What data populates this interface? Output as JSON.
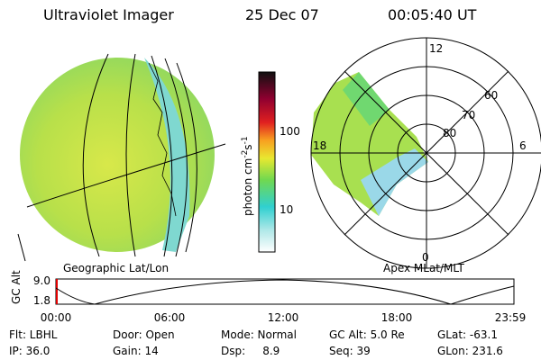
{
  "header": {
    "instrument": "Ultraviolet Imager",
    "date": "25 Dec 07",
    "time": "00:05:40 UT"
  },
  "colorbar": {
    "unit": [
      "photon cm",
      "-2",
      "s",
      "-1"
    ],
    "ticks": [
      "100",
      "10"
    ]
  },
  "panels": {
    "left": "Geographic Lat/Lon",
    "right": "Apex MLat/MLT"
  },
  "polar": {
    "mlt": [
      "12",
      "18",
      "6",
      "0"
    ],
    "mlat": [
      "60",
      "70",
      "80"
    ]
  },
  "altitude": {
    "label": "GC Alt",
    "yticks": [
      "9.0",
      "1.8"
    ],
    "xticks": [
      "00:00",
      "06:00",
      "12:00",
      "18:00",
      "23:59"
    ]
  },
  "footer": [
    [
      "Flt: LBHL",
      "Door: Open",
      "Mode: Normal",
      "GC Alt: 5.0 Re",
      "GLat: -63.1"
    ],
    [
      "IP: 36.0",
      "Gain: 14",
      "Dsp:     8.9",
      "Seq: 39",
      "GLon: 231.6"
    ]
  ]
}
